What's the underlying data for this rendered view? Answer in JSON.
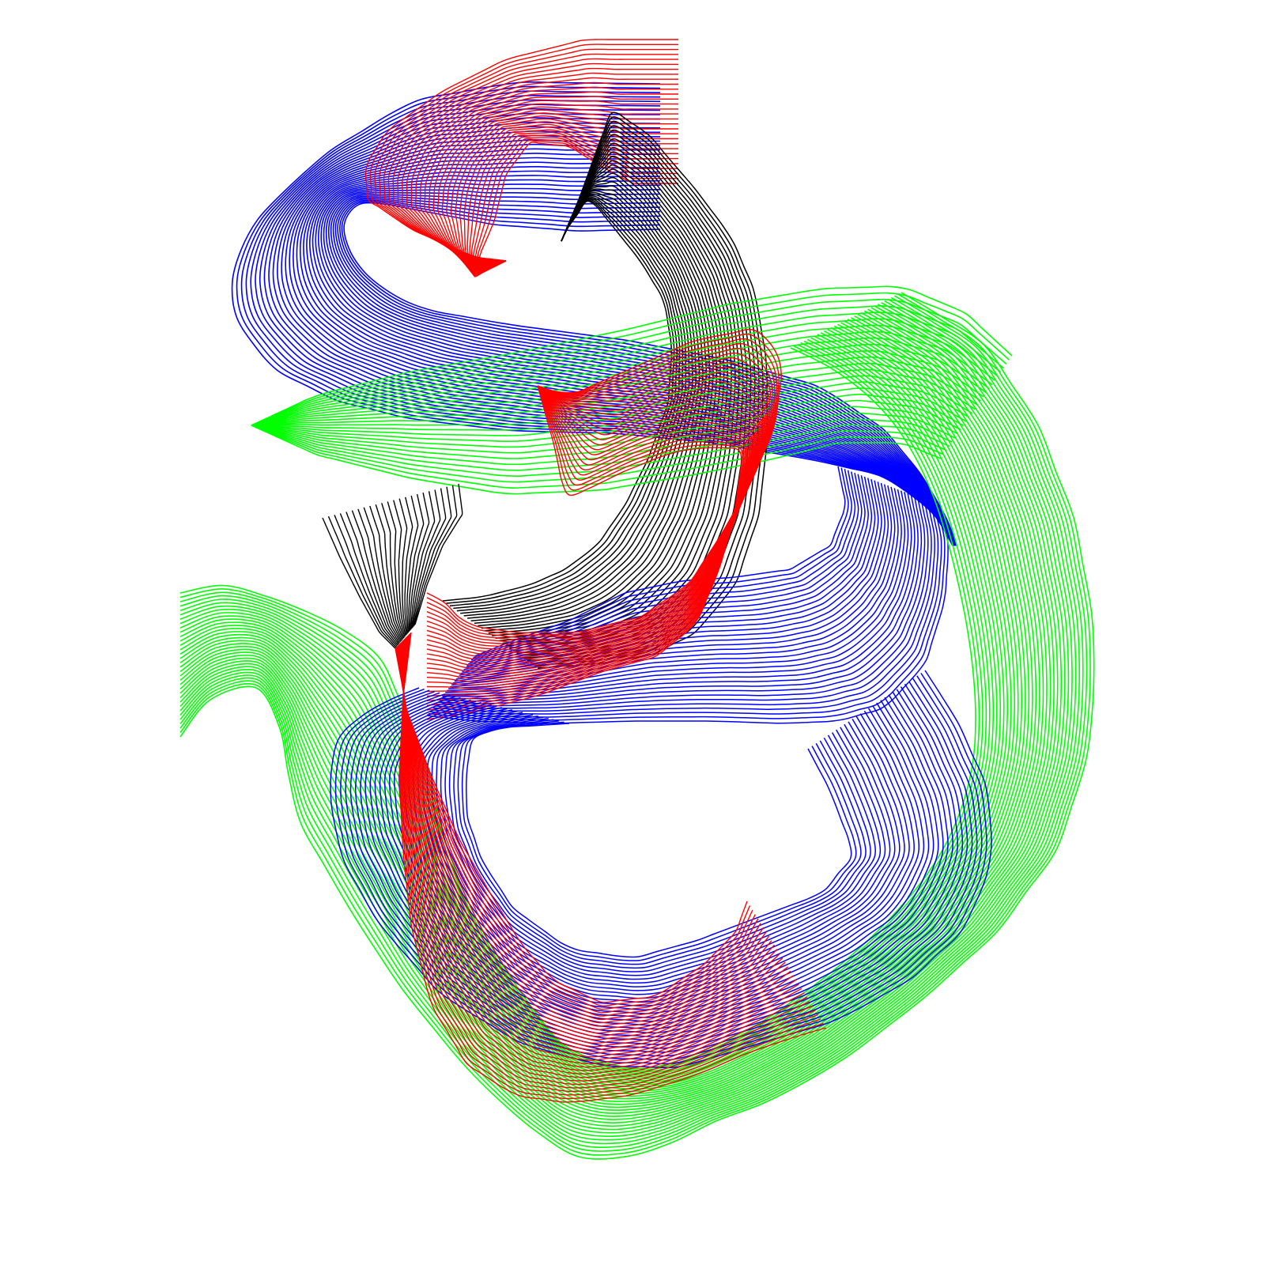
{
  "artwork": {
    "background": "#ffffff",
    "ribbons": [
      {
        "name": "blue-ribbon-upper",
        "color": "#0000ff"
      },
      {
        "name": "red-ribbon-top",
        "color": "#ff0000"
      },
      {
        "name": "black-ribbon-upper",
        "color": "#000000"
      },
      {
        "name": "green-ribbon-upper",
        "color": "#00ff00"
      },
      {
        "name": "blue-ribbon-middle",
        "color": "#0000ff"
      },
      {
        "name": "red-ribbon-middle",
        "color": "#ff0000"
      },
      {
        "name": "black-ribbon-lower",
        "color": "#000000"
      },
      {
        "name": "green-ribbon-large",
        "color": "#00ff00"
      },
      {
        "name": "blue-ribbon-lower",
        "color": "#0000ff"
      },
      {
        "name": "red-ribbon-lower",
        "color": "#ff0000"
      }
    ]
  }
}
